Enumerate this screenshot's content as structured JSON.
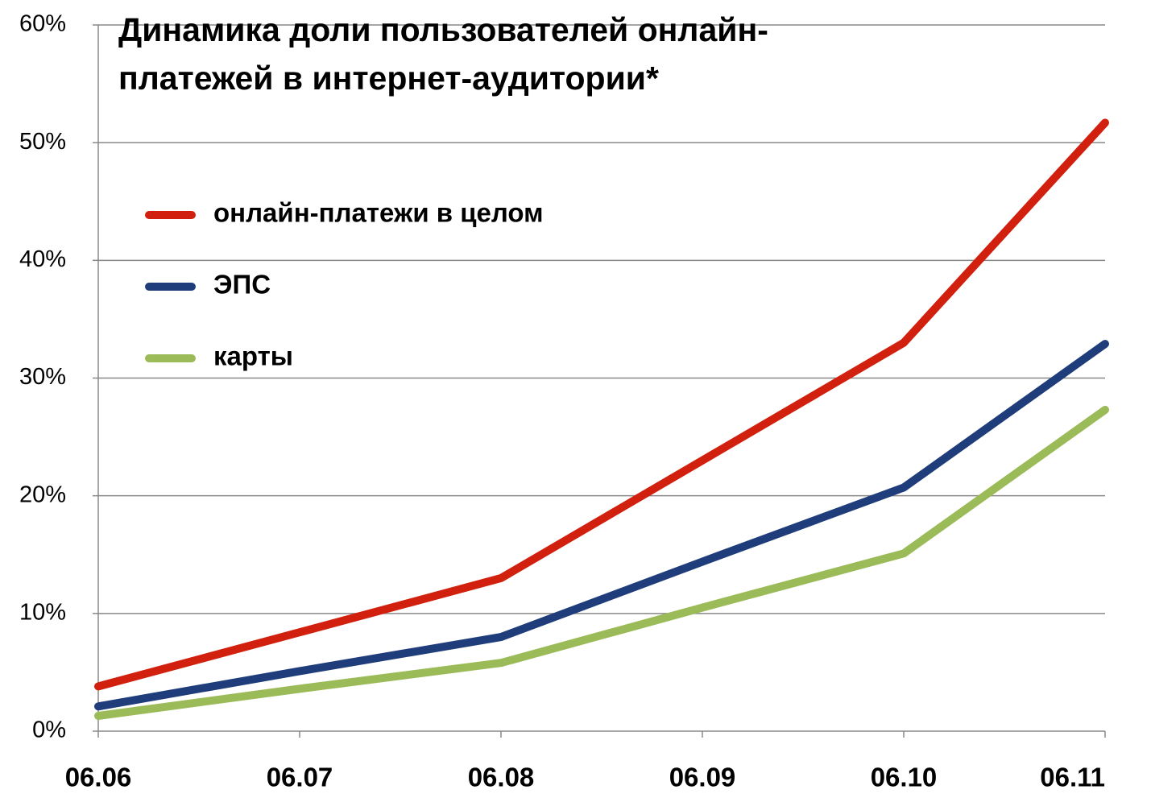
{
  "chart_data": {
    "type": "line",
    "title": [
      "Динамика доли пользователей онлайн-",
      "платежей в интернет-аудитории*"
    ],
    "categories": [
      "06.06",
      "06.07",
      "06.08",
      "06.09",
      "06.10",
      "06.11"
    ],
    "series": [
      {
        "name": "онлайн-платежи в целом",
        "color": "#d2200f",
        "values": [
          3.8,
          8.4,
          13,
          23,
          33,
          51.7
        ]
      },
      {
        "name": "ЭПС",
        "color": "#1f3d7a",
        "values": [
          2.1,
          5.1,
          8,
          14.4,
          20.7,
          32.9
        ]
      },
      {
        "name": "карты",
        "color": "#9bbb59",
        "values": [
          1.3,
          3.6,
          5.8,
          10.5,
          15.1,
          27.3
        ]
      }
    ],
    "ylim": [
      0,
      60
    ],
    "yticks": [
      {
        "value": 0,
        "label": "0%"
      },
      {
        "value": 10,
        "label": "10%"
      },
      {
        "value": 20,
        "label": "20%"
      },
      {
        "value": 30,
        "label": "30%"
      },
      {
        "value": 40,
        "label": "40%"
      },
      {
        "value": 50,
        "label": "50%"
      },
      {
        "value": 60,
        "label": "60%"
      }
    ],
    "grid": true,
    "legend": "upper-left"
  }
}
